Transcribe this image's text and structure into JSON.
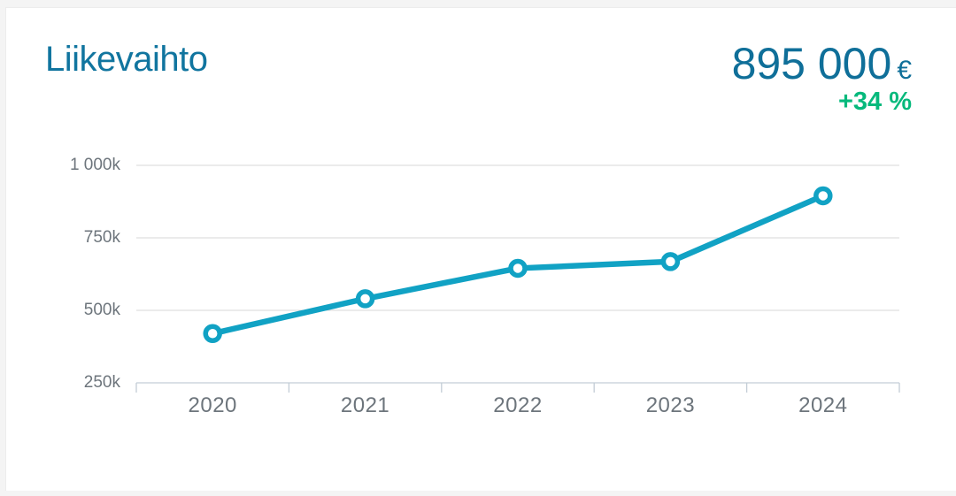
{
  "header": {
    "title": "Liikevaihto",
    "value": "895 000",
    "currency": "€",
    "growth": "+34 %"
  },
  "colors": {
    "accent": "#11a2c4",
    "title": "#11759f",
    "value": "#0f6f99",
    "growth": "#06b97c",
    "axis_label": "#6d757c",
    "gridline": "#d7d7d7",
    "axis_line": "#c3cdd6",
    "page_bg": "#f4f4f4",
    "card_bg": "#ffffff"
  },
  "chart_data": {
    "type": "line",
    "title": "Liikevaihto",
    "categories": [
      "2020",
      "2021",
      "2022",
      "2023",
      "2024"
    ],
    "series": [
      {
        "name": "Liikevaihto (€)",
        "values": [
          420000,
          540000,
          645000,
          668000,
          895000
        ]
      }
    ],
    "xlabel": "",
    "ylabel": "€",
    "ylim": [
      250000,
      1000000
    ],
    "y_ticks": [
      {
        "value": 250000,
        "label": "250k"
      },
      {
        "value": 500000,
        "label": "500k"
      },
      {
        "value": 750000,
        "label": "750k"
      },
      {
        "value": 1000000,
        "label": "1 000k"
      }
    ],
    "grid": true,
    "legend": false,
    "marker": "open-circle",
    "line_color": "#11a2c4"
  }
}
